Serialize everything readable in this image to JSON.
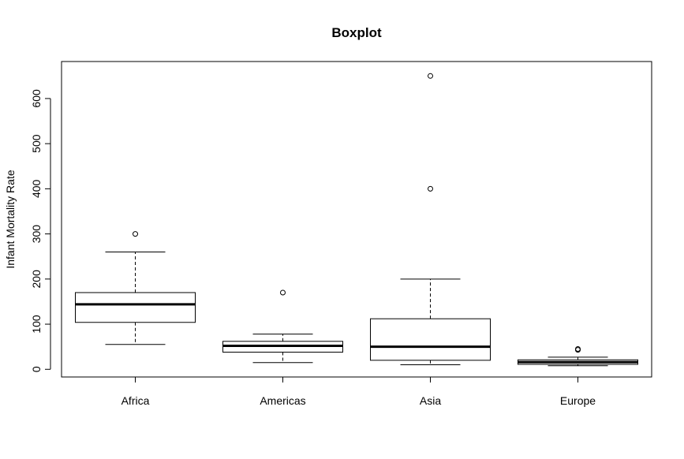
{
  "chart_data": {
    "type": "boxplot",
    "title": "Boxplot",
    "xlabel": "",
    "ylabel": "Infant Mortality Rate",
    "categories": [
      "Africa",
      "Americas",
      "Asia",
      "Europe"
    ],
    "ylim": [
      -17,
      682
    ],
    "yticks": [
      0,
      100,
      200,
      300,
      400,
      500,
      600
    ],
    "grid": false,
    "boxes": [
      {
        "category": "Africa",
        "whisker_low": 55,
        "q1": 104,
        "median": 144,
        "q3": 170,
        "whisker_high": 260,
        "outliers": [
          300
        ]
      },
      {
        "category": "Americas",
        "whisker_low": 15,
        "q1": 38,
        "median": 52,
        "q3": 62,
        "whisker_high": 78,
        "outliers": [
          170
        ]
      },
      {
        "category": "Asia",
        "whisker_low": 10,
        "q1": 20,
        "median": 50,
        "q3": 112,
        "whisker_high": 200,
        "outliers": [
          400,
          650
        ]
      },
      {
        "category": "Europe",
        "whisker_low": 8,
        "q1": 11,
        "median": 16,
        "q3": 21,
        "whisker_high": 27,
        "outliers": [
          43,
          45
        ]
      }
    ]
  }
}
